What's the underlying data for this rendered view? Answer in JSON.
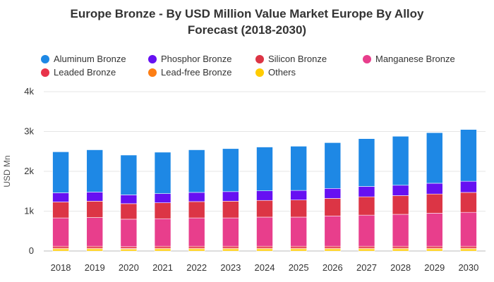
{
  "chart_data": {
    "type": "bar",
    "stacked": true,
    "title": "Europe Bronze - By USD Million Value Market Europe By Alloy Forecast (2018-2030)",
    "title_lines": [
      "Europe Bronze - By USD Million Value Market Europe By Alloy",
      "Forecast (2018-2030)"
    ],
    "ylabel": "USD Mn",
    "xlabel": "",
    "ylim": [
      0,
      4000
    ],
    "yticks": [
      0,
      1000,
      2000,
      3000,
      4000
    ],
    "ytick_labels": [
      "0",
      "1k",
      "2k",
      "3k",
      "4k"
    ],
    "grid": true,
    "legend_position": "top",
    "categories": [
      "2018",
      "2019",
      "2020",
      "2021",
      "2022",
      "2023",
      "2024",
      "2025",
      "2026",
      "2027",
      "2028",
      "2029",
      "2030"
    ],
    "series": [
      {
        "name": "Others",
        "color": "#ffcc00",
        "values": [
          50,
          50,
          45,
          50,
          50,
          50,
          50,
          50,
          50,
          50,
          50,
          50,
          50
        ]
      },
      {
        "name": "Lead-free Bronze",
        "color": "#fd7e14",
        "values": [
          20,
          20,
          18,
          20,
          20,
          20,
          20,
          20,
          20,
          20,
          20,
          20,
          20
        ]
      },
      {
        "name": "Leaded Bronze",
        "color": "#e8334a",
        "values": [
          50,
          50,
          45,
          50,
          50,
          50,
          50,
          50,
          50,
          50,
          50,
          50,
          50
        ]
      },
      {
        "name": "Manganese Bronze",
        "color": "#e83e8c",
        "values": [
          710,
          720,
          690,
          690,
          710,
          710,
          730,
          730,
          760,
          780,
          800,
          830,
          850
        ]
      },
      {
        "name": "Silicon Bronze",
        "color": "#dc3545",
        "values": [
          400,
          410,
          390,
          400,
          410,
          420,
          420,
          430,
          440,
          460,
          470,
          480,
          500
        ]
      },
      {
        "name": "Phosphor Bronze",
        "color": "#6610f2",
        "values": [
          230,
          230,
          220,
          230,
          230,
          240,
          240,
          240,
          250,
          260,
          260,
          270,
          280
        ]
      },
      {
        "name": "Aluminum Bronze",
        "color": "#1e88e5",
        "values": [
          1030,
          1060,
          1000,
          1040,
          1070,
          1080,
          1100,
          1110,
          1150,
          1200,
          1230,
          1270,
          1300
        ]
      }
    ],
    "legend": [
      {
        "label": "Aluminum Bronze",
        "color": "#1e88e5"
      },
      {
        "label": "Phosphor Bronze",
        "color": "#6610f2"
      },
      {
        "label": "Silicon Bronze",
        "color": "#dc3545"
      },
      {
        "label": "Manganese Bronze",
        "color": "#e83e8c"
      },
      {
        "label": "Leaded Bronze",
        "color": "#e8334a"
      },
      {
        "label": "Lead-free Bronze",
        "color": "#fd7e14"
      },
      {
        "label": "Others",
        "color": "#ffcc00"
      }
    ]
  }
}
